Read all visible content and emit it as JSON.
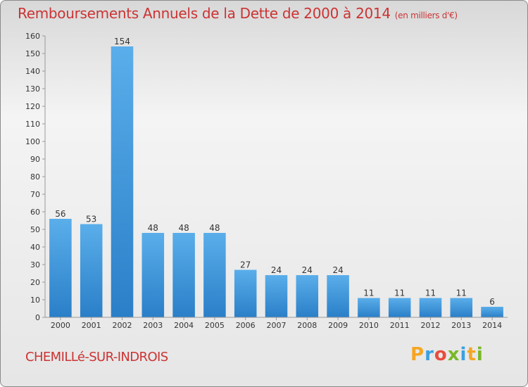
{
  "header": {
    "title": "Remboursements Annuels de la Dette de 2000 à 2014",
    "unit": "(en milliers d'€)"
  },
  "footer": {
    "commune": "CHEMILLé-SUR-INDROIS",
    "logo_letters": [
      "P",
      "r",
      "o",
      "x",
      "i",
      "t",
      "i"
    ],
    "logo_colors": [
      "#f5a623",
      "#3aa0e0",
      "#e84c3d",
      "#79b829",
      "#3aa0e0",
      "#f5a623",
      "#79b829"
    ]
  },
  "colors": {
    "bar_light": "#5aaeea",
    "bar_dark": "#2a7fc8",
    "title": "#cc3333"
  },
  "chart_data": {
    "type": "bar",
    "categories": [
      "2000",
      "2001",
      "2002",
      "2003",
      "2004",
      "2005",
      "2006",
      "2007",
      "2008",
      "2009",
      "2010",
      "2011",
      "2012",
      "2013",
      "2014"
    ],
    "values": [
      56,
      53,
      154,
      48,
      48,
      48,
      27,
      24,
      24,
      24,
      11,
      11,
      11,
      11,
      6
    ],
    "ylim": [
      0,
      160
    ],
    "yticks": [
      0,
      10,
      20,
      30,
      40,
      50,
      60,
      70,
      80,
      90,
      100,
      110,
      120,
      130,
      140,
      150,
      160
    ],
    "grid": false
  }
}
